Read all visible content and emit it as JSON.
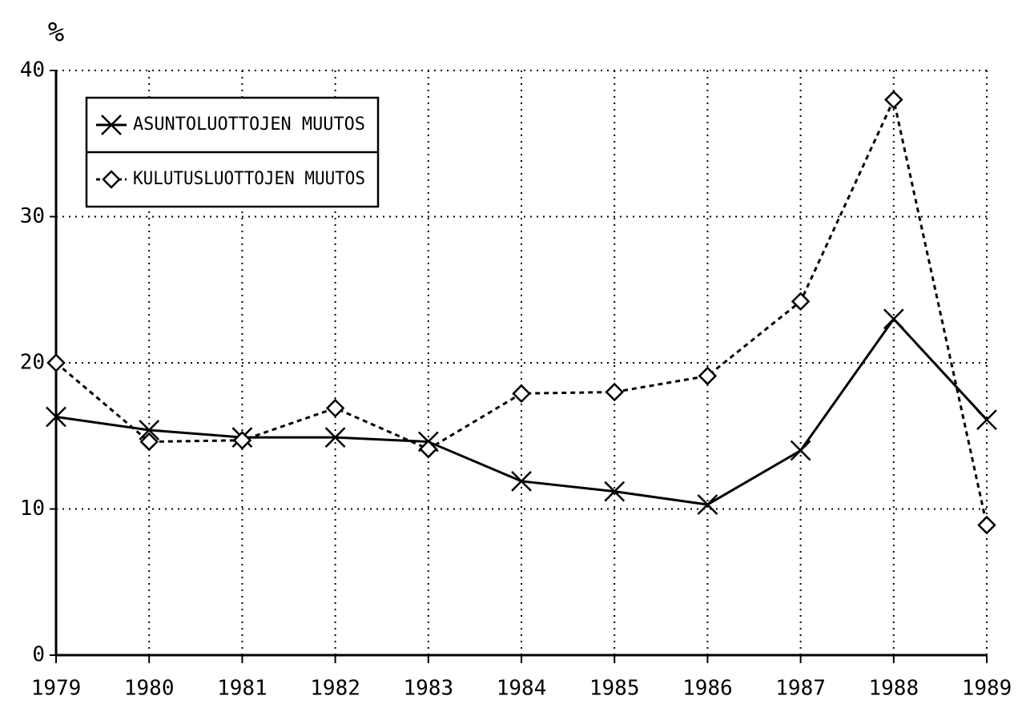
{
  "chart_data": {
    "type": "line",
    "y_label": "%",
    "categories": [
      "1979",
      "1980",
      "1981",
      "1982",
      "1983",
      "1984",
      "1985",
      "1986",
      "1987",
      "1988",
      "1989"
    ],
    "series": [
      {
        "name": "ASUNTOLUOTTOJEN MUUTOS",
        "color": "#000000",
        "marker": "x",
        "dash": "solid",
        "values": [
          16.3,
          15.4,
          14.9,
          14.9,
          14.6,
          11.9,
          11.2,
          10.3,
          14.0,
          23.0,
          16.1
        ]
      },
      {
        "name": "KULUTUSLUOTTOJEN MUUTOS",
        "color": "#000000",
        "marker": "diamond",
        "dash": "dashed",
        "values": [
          20.0,
          14.6,
          14.7,
          16.9,
          14.1,
          17.9,
          18.0,
          19.1,
          24.2,
          38.0,
          8.9
        ]
      }
    ],
    "ylim": [
      0,
      40
    ],
    "yticks": [
      0,
      10,
      20,
      30,
      40
    ],
    "grid": true,
    "legend": "upper left"
  }
}
